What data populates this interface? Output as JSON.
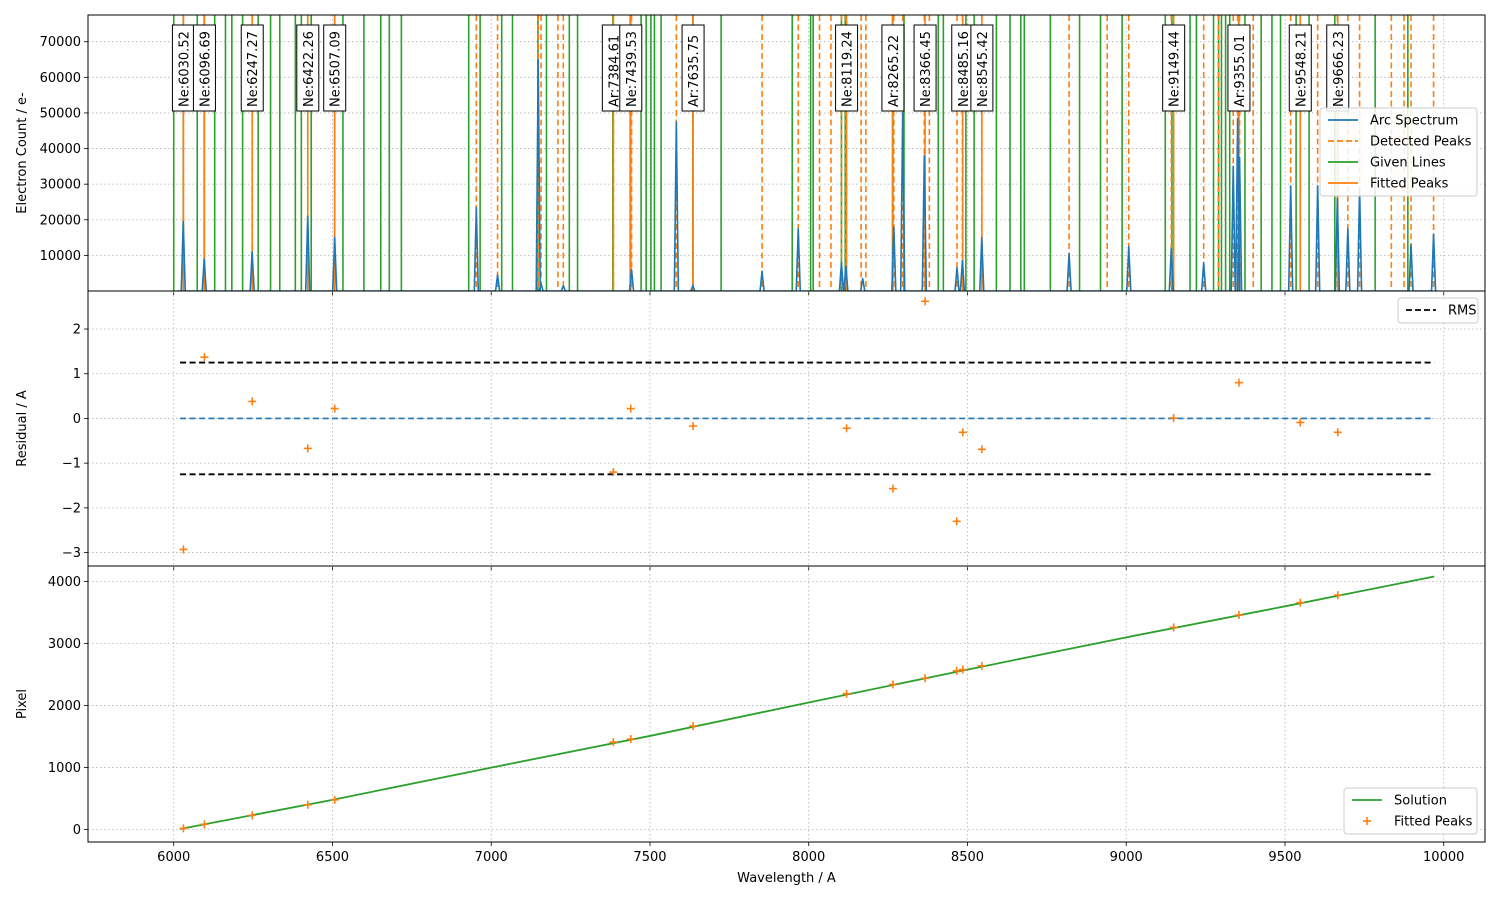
{
  "chart_data": [
    {
      "type": "line",
      "panel": "arc-spectrum",
      "xlim": [
        5730,
        10130
      ],
      "ylim": [
        0,
        77500
      ],
      "xlabel": "",
      "ylabel": "Electron Count / e-",
      "yticks": [
        10000,
        20000,
        30000,
        40000,
        50000,
        60000,
        70000
      ],
      "grid": true,
      "legend_position": "right",
      "legend": [
        "Arc Spectrum",
        "Detected Peaks",
        "Given Lines",
        "Fitted Peaks"
      ],
      "arc_peaks": [
        {
          "x": 6030,
          "y": 19500
        },
        {
          "x": 6096,
          "y": 9000
        },
        {
          "x": 6247,
          "y": 11000
        },
        {
          "x": 6422,
          "y": 21000
        },
        {
          "x": 6507,
          "y": 15000
        },
        {
          "x": 6953,
          "y": 23500
        },
        {
          "x": 7020,
          "y": 4500
        },
        {
          "x": 7148,
          "y": 65000
        },
        {
          "x": 7157,
          "y": 2000
        },
        {
          "x": 7227,
          "y": 1500
        },
        {
          "x": 7442,
          "y": 6000
        },
        {
          "x": 7583,
          "y": 47500
        },
        {
          "x": 7635,
          "y": 1500
        },
        {
          "x": 7853,
          "y": 5500
        },
        {
          "x": 7967,
          "y": 17500
        },
        {
          "x": 8103,
          "y": 8000
        },
        {
          "x": 8117,
          "y": 7000
        },
        {
          "x": 8170,
          "y": 3500
        },
        {
          "x": 8268,
          "y": 18000
        },
        {
          "x": 8296,
          "y": 50000
        },
        {
          "x": 8364,
          "y": 38000
        },
        {
          "x": 8467,
          "y": 6500
        },
        {
          "x": 8484,
          "y": 8500
        },
        {
          "x": 8545,
          "y": 15000
        },
        {
          "x": 8820,
          "y": 10500
        },
        {
          "x": 9008,
          "y": 12500
        },
        {
          "x": 9142,
          "y": 12000
        },
        {
          "x": 9244,
          "y": 8000
        },
        {
          "x": 9337,
          "y": 35000
        },
        {
          "x": 9351,
          "y": 48500
        },
        {
          "x": 9357,
          "y": 37500
        },
        {
          "x": 9518,
          "y": 29500
        },
        {
          "x": 9603,
          "y": 29500
        },
        {
          "x": 9665,
          "y": 26000
        },
        {
          "x": 9698,
          "y": 17500
        },
        {
          "x": 9735,
          "y": 29000
        },
        {
          "x": 9897,
          "y": 13000
        },
        {
          "x": 9968,
          "y": 16000
        }
      ],
      "detected_peaks": [
        6030,
        6096,
        6247,
        6422,
        6507,
        6953,
        7020,
        7148,
        7157,
        7210,
        7227,
        7385,
        7442,
        7583,
        7635,
        7853,
        7967,
        8034,
        8070,
        8103,
        8117,
        8165,
        8180,
        8268,
        8296,
        8364,
        8380,
        8467,
        8484,
        8545,
        8820,
        8940,
        9008,
        9142,
        9244,
        9290,
        9337,
        9351,
        9357,
        9400,
        9518,
        9548,
        9603,
        9665,
        9698,
        9735,
        9835,
        9875,
        9897,
        9968
      ],
      "given_lines": [
        6000,
        6030,
        6074,
        6096,
        6129,
        6163,
        6183,
        6217,
        6266,
        6305,
        6334,
        6383,
        6402,
        6433,
        6507,
        6533,
        6599,
        6652,
        6679,
        6717,
        6929,
        6965,
        7033,
        7067,
        7147,
        7174,
        7246,
        7272,
        7383,
        7438,
        7472,
        7488,
        7503,
        7514,
        7535,
        7635,
        7724,
        7948,
        8006,
        8014,
        8103,
        8115,
        8264,
        8300,
        8408,
        8424,
        8495,
        8521,
        8591,
        8634,
        8668,
        8679,
        8761,
        8853,
        8919,
        8987,
        9123,
        9144,
        9201,
        9221,
        9275,
        9291,
        9300,
        9313,
        9326,
        9354,
        9374,
        9425,
        9459,
        9486,
        9535,
        9576,
        9657,
        9784,
        9887
      ],
      "fitted_peaks": [
        6030.52,
        6096.69,
        6247.27,
        6422.26,
        6507.09,
        7384.61,
        7439.53,
        7635.75,
        8119.24,
        8265.22,
        8366.45,
        8485.16,
        8545.42,
        9149.44,
        9355.01,
        9548.21,
        9666.23
      ],
      "line_labels": [
        "Ne:6030.52",
        "Ne:6096.69",
        "Ne:6247.27",
        "Ne:6422.26",
        "Ne:6507.09",
        "Ar:7384.61",
        "Ne:7439.53",
        "Ar:7635.75",
        "Ne:8119.24",
        "Ar:8265.22",
        "Ne:8366.45",
        "Ne:8485.16",
        "Ne:8545.42",
        "Ne:9149.44",
        "Ar:9355.01",
        "Ne:9548.21",
        "Ne:9666.23"
      ]
    },
    {
      "type": "scatter",
      "panel": "residuals",
      "xlim": [
        5730,
        10130
      ],
      "ylim": [
        -3.3,
        2.85
      ],
      "xlabel": "",
      "ylabel": "Residual / A",
      "yticks": [
        -3,
        -2,
        -1,
        0,
        1,
        2
      ],
      "grid": true,
      "legend_position": "top-right",
      "legend": [
        "RMS"
      ],
      "rms": 1.25,
      "zero_line": 0,
      "line_span": [
        6020,
        9970
      ],
      "points": [
        {
          "x": 6030.52,
          "y": -2.93
        },
        {
          "x": 6096.69,
          "y": 1.37
        },
        {
          "x": 6247.27,
          "y": 0.38
        },
        {
          "x": 6422.26,
          "y": -0.67
        },
        {
          "x": 6507.09,
          "y": 0.22
        },
        {
          "x": 7384.61,
          "y": -1.2
        },
        {
          "x": 7439.53,
          "y": 0.22
        },
        {
          "x": 7635.75,
          "y": -0.17
        },
        {
          "x": 8119.24,
          "y": -0.22
        },
        {
          "x": 8265.22,
          "y": -1.57
        },
        {
          "x": 8366.45,
          "y": 2.62
        },
        {
          "x": 8466.0,
          "y": -2.3
        },
        {
          "x": 8485.16,
          "y": -0.31
        },
        {
          "x": 8545.42,
          "y": -0.69
        },
        {
          "x": 9149.44,
          "y": 0.01
        },
        {
          "x": 9355.01,
          "y": 0.8
        },
        {
          "x": 9548.21,
          "y": -0.09
        },
        {
          "x": 9666.23,
          "y": -0.31
        }
      ]
    },
    {
      "type": "line",
      "panel": "solution",
      "xlim": [
        5730,
        10130
      ],
      "ylim": [
        -200,
        4250
      ],
      "xlabel": "Wavelength / A",
      "ylabel": "Pixel",
      "xticks": [
        6000,
        6500,
        7000,
        7500,
        8000,
        8500,
        9000,
        9500,
        10000
      ],
      "yticks": [
        0,
        1000,
        2000,
        3000,
        4000
      ],
      "grid": true,
      "legend_position": "bottom-right",
      "legend": [
        "Solution",
        "Fitted Peaks"
      ],
      "solution": [
        {
          "x": 6020,
          "y": 10
        },
        {
          "x": 6500,
          "y": 480
        },
        {
          "x": 7000,
          "y": 1000
        },
        {
          "x": 7500,
          "y": 1510
        },
        {
          "x": 8000,
          "y": 2050
        },
        {
          "x": 8500,
          "y": 2580
        },
        {
          "x": 9000,
          "y": 3100
        },
        {
          "x": 9500,
          "y": 3600
        },
        {
          "x": 9970,
          "y": 4080
        }
      ],
      "points": [
        {
          "x": 6030.52,
          "y": 20
        },
        {
          "x": 6096.69,
          "y": 85
        },
        {
          "x": 6247.27,
          "y": 230
        },
        {
          "x": 6422.26,
          "y": 400
        },
        {
          "x": 6507.09,
          "y": 480
        },
        {
          "x": 7384.61,
          "y": 1410
        },
        {
          "x": 7439.53,
          "y": 1460
        },
        {
          "x": 7635.75,
          "y": 1670
        },
        {
          "x": 8119.24,
          "y": 2190
        },
        {
          "x": 8265.22,
          "y": 2340
        },
        {
          "x": 8366.45,
          "y": 2440
        },
        {
          "x": 8466.0,
          "y": 2560
        },
        {
          "x": 8485.16,
          "y": 2580
        },
        {
          "x": 8545.42,
          "y": 2640
        },
        {
          "x": 9149.44,
          "y": 3260
        },
        {
          "x": 9355.01,
          "y": 3460
        },
        {
          "x": 9548.21,
          "y": 3660
        },
        {
          "x": 9666.23,
          "y": 3780
        }
      ]
    }
  ],
  "colors": {
    "arc": "#1f77b4",
    "detected": "#ff7f0e",
    "given": "#2ca02c",
    "fitted": "#ff7f0e",
    "rms": "#000000",
    "zero": "#1f77b4",
    "solution": "#2ca02c",
    "grid": "#b0b0b0"
  }
}
